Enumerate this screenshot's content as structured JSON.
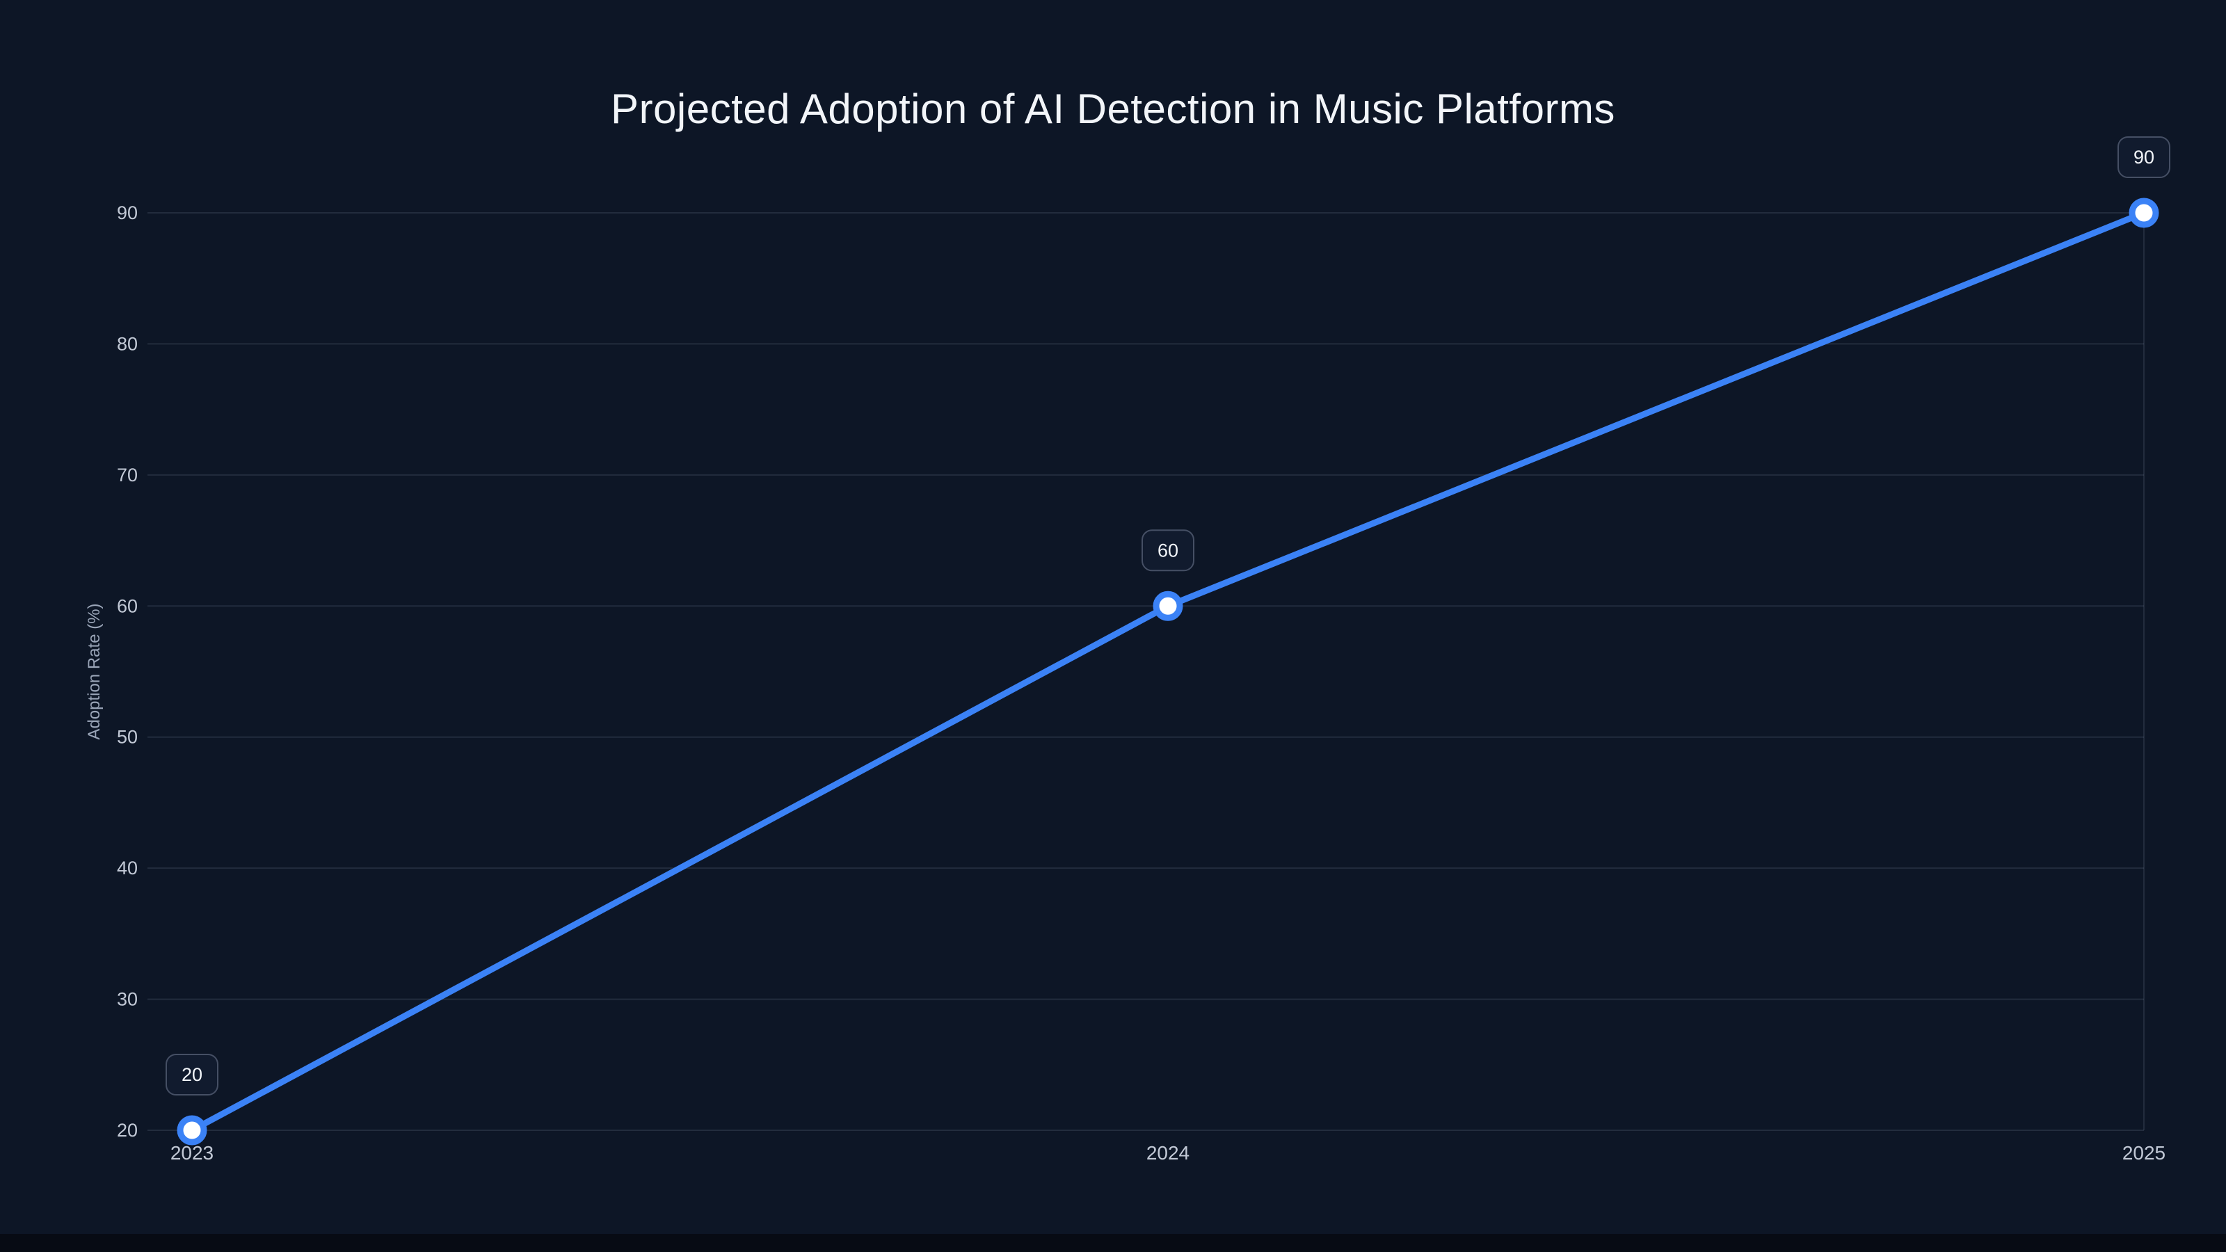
{
  "chart_data": {
    "type": "line",
    "title": "Projected Adoption of AI Detection in Music Platforms",
    "categories": [
      "2023",
      "2024",
      "2025"
    ],
    "series": [
      {
        "name": "Adoption Rate (%)",
        "values": [
          20,
          60,
          90
        ]
      }
    ],
    "data_labels": [
      "20",
      "60",
      "90"
    ],
    "xlabel": "",
    "ylabel": "Adoption Rate (%)",
    "ylim": [
      20,
      90
    ],
    "yticks": [
      20,
      30,
      40,
      50,
      60,
      70,
      80,
      90
    ],
    "grid": true,
    "legend": "none",
    "colors": {
      "background": "#0d1626",
      "line": "#3b82f6",
      "grid": "rgba(148,163,184,0.16)",
      "tick_text": "#c2c9d6",
      "axis_title_text": "#9aa5b8",
      "title_text": "#f2f5f9",
      "marker_fill": "#ffffff",
      "label_box_fill": "#111b2e",
      "label_box_border": "#454f64",
      "label_text": "#f2f5f9"
    }
  }
}
